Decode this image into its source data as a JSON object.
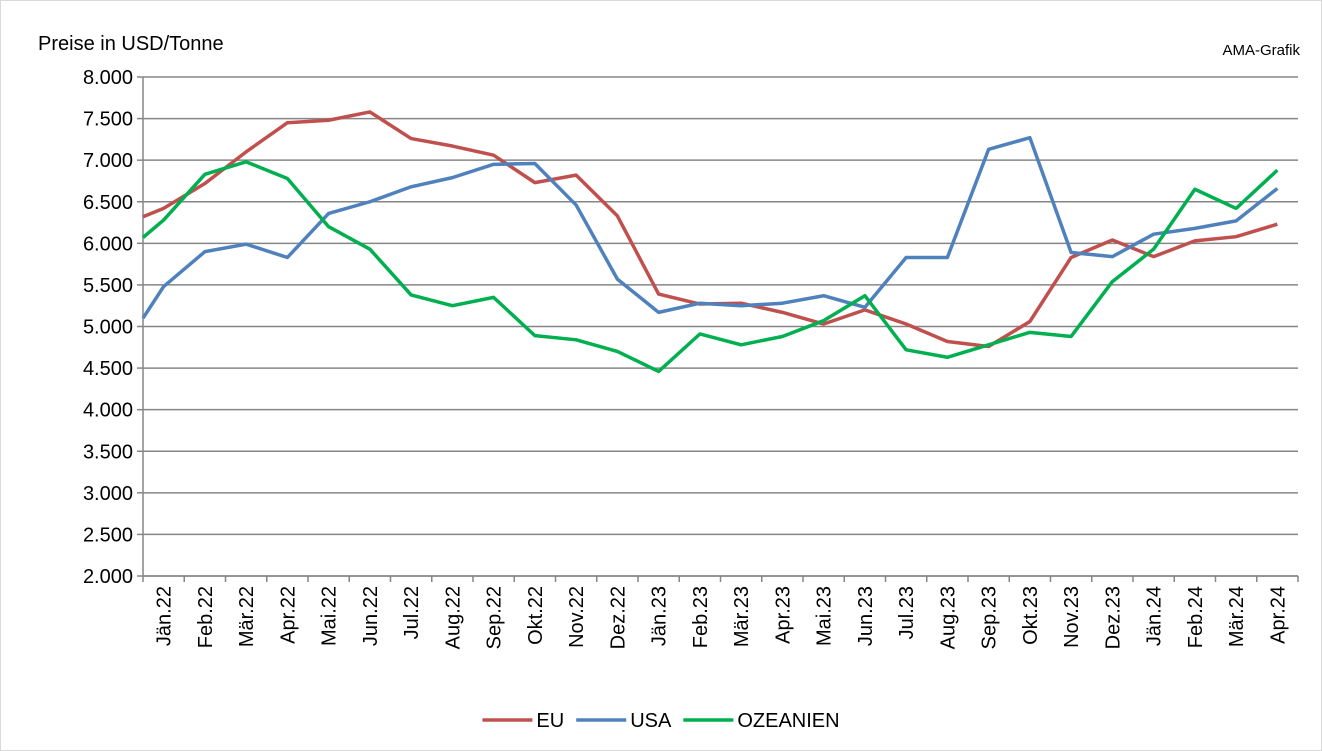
{
  "chart_data": {
    "type": "line",
    "title": "Preise in USD/Tonne",
    "annotation": "AMA-Grafik",
    "categories": [
      null,
      "Jän.22",
      "Feb.22",
      "Mär.22",
      "Apr.22",
      "Mai.22",
      "Jun.22",
      "Jul.22",
      "Aug.22",
      "Sep.22",
      "Okt.22",
      "Nov.22",
      "Dez.22",
      "Jän.23",
      "Feb.23",
      "Mär.23",
      "Apr.23",
      "Mai.23",
      "Jun.23",
      "Jul.23",
      "Aug.23",
      "Sep.23",
      "Okt.23",
      "Nov.23",
      "Dez.23",
      "Jän.24",
      "Feb.24",
      "Mär.24",
      "Apr.24"
    ],
    "series": [
      {
        "name": "EU",
        "color": "#c0504d",
        "values": [
          6320,
          6420,
          6720,
          7100,
          7450,
          7480,
          7580,
          7260,
          7170,
          7060,
          6730,
          6820,
          6330,
          5390,
          5270,
          5280,
          5170,
          5030,
          5200,
          5030,
          4820,
          4760,
          5060,
          5830,
          6040,
          5840,
          6030,
          6080,
          6230
        ]
      },
      {
        "name": "USA",
        "color": "#4f81bd",
        "values": [
          5100,
          5480,
          5900,
          5990,
          5830,
          6360,
          6500,
          6680,
          6790,
          6950,
          6960,
          6460,
          5570,
          5170,
          5280,
          5250,
          5280,
          5370,
          5230,
          5830,
          5830,
          7130,
          7270,
          5890,
          5840,
          6110,
          6180,
          6270,
          6660
        ]
      },
      {
        "name": "OZEANIEN",
        "color": "#00b050",
        "values": [
          6070,
          6280,
          6830,
          6980,
          6780,
          6200,
          5930,
          5380,
          5250,
          5350,
          4890,
          4840,
          4700,
          4460,
          4910,
          4780,
          4880,
          5070,
          5370,
          4720,
          4630,
          4780,
          4930,
          4880,
          5540,
          5930,
          6650,
          6420,
          6880
        ]
      }
    ],
    "ylim": [
      2000,
      8000
    ],
    "yticks": [
      {
        "value": 2000,
        "label": "2.000"
      },
      {
        "value": 2500,
        "label": "2.500"
      },
      {
        "value": 3000,
        "label": "3.000"
      },
      {
        "value": 3500,
        "label": "3.500"
      },
      {
        "value": 4000,
        "label": "4.000"
      },
      {
        "value": 4500,
        "label": "4.500"
      },
      {
        "value": 5000,
        "label": "5.000"
      },
      {
        "value": 5500,
        "label": "5.500"
      },
      {
        "value": 6000,
        "label": "6.000"
      },
      {
        "value": 6500,
        "label": "6.500"
      },
      {
        "value": 7000,
        "label": "7.000"
      },
      {
        "value": 7500,
        "label": "7.500"
      },
      {
        "value": 8000,
        "label": "8.000"
      }
    ],
    "grid": true,
    "legend": "bottom"
  }
}
